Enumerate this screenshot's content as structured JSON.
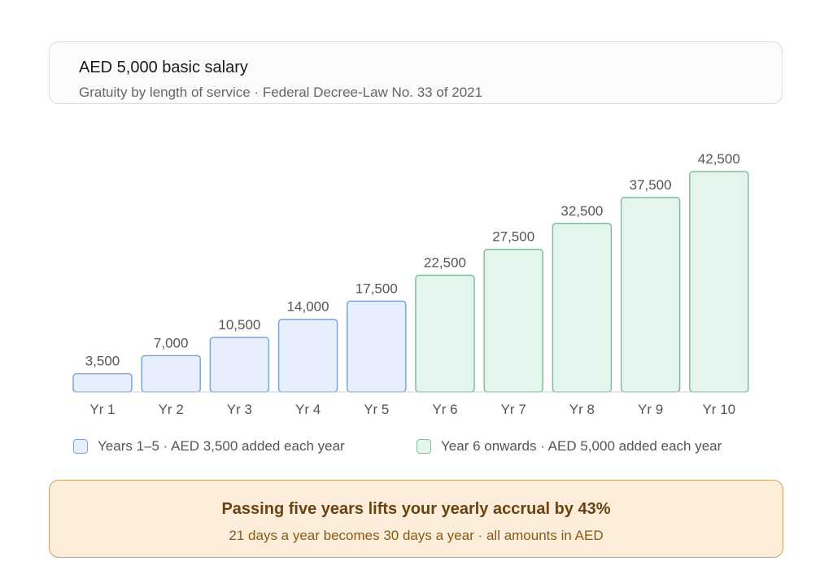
{
  "header": {
    "title": "AED 5,000 basic salary",
    "subtitle": "Gratuity by length of service · Federal Decree-Law No. 33 of 2021"
  },
  "legend": {
    "tier1": "Years 1–5 · AED 3,500 added each year",
    "tier2": "Year 6 onwards · AED 5,000 added each year"
  },
  "callout": {
    "title": "Passing five years lifts your yearly accrual by 43%",
    "subtitle": "21 days a year becomes 30 days a year · all amounts in AED"
  },
  "colors": {
    "tier1_fill": "#e6effb",
    "tier1_stroke": "#7ea6d6",
    "tier2_fill": "#e3f5ec",
    "tier2_stroke": "#7fbf9e",
    "callout_bg": "#fcedda",
    "callout_border": "#c9a467"
  },
  "chart_data": {
    "type": "bar",
    "categories": [
      "Yr 1",
      "Yr 2",
      "Yr 3",
      "Yr 4",
      "Yr 5",
      "Yr 6",
      "Yr 7",
      "Yr 8",
      "Yr 9",
      "Yr 10"
    ],
    "values": [
      3500,
      7000,
      10500,
      14000,
      17500,
      22500,
      27500,
      32500,
      37500,
      42500
    ],
    "value_labels": [
      "3,500",
      "7,000",
      "10,500",
      "14,000",
      "17,500",
      "22,500",
      "27,500",
      "32,500",
      "37,500",
      "42,500"
    ],
    "tiers": [
      "tier1",
      "tier1",
      "tier1",
      "tier1",
      "tier1",
      "tier2",
      "tier2",
      "tier2",
      "tier2",
      "tier2"
    ],
    "ylim": [
      0,
      42500
    ],
    "grid": false
  }
}
